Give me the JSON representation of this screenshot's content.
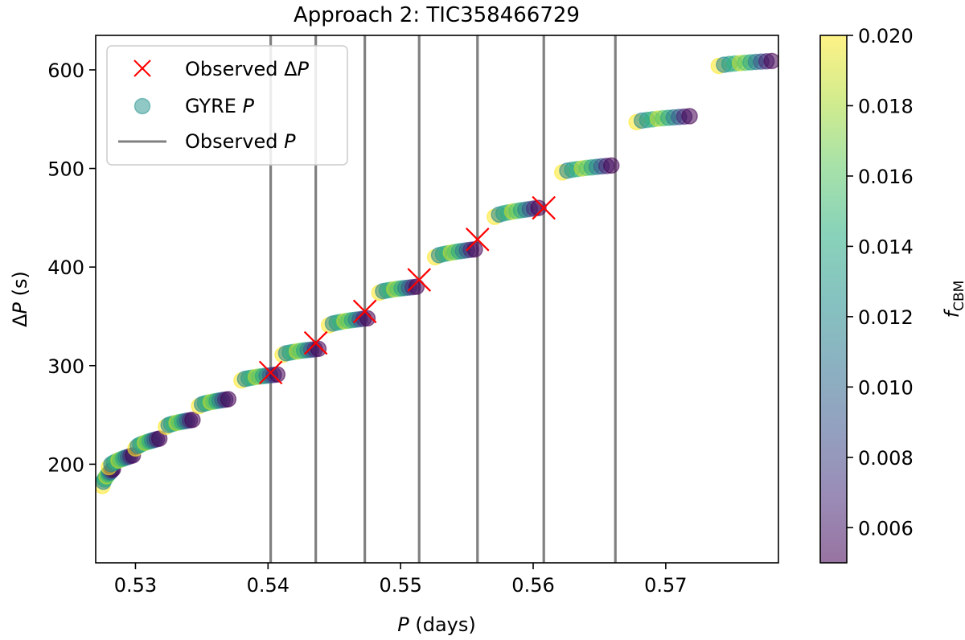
{
  "chart_data": {
    "type": "scatter",
    "title": "Approach 2: TIC358466729",
    "xlabel": {
      "main": "P",
      "units": " (days)"
    },
    "ylabel": {
      "prefix": "Δ",
      "main": "P",
      "units": " (s)"
    },
    "xlim": [
      0.527,
      0.5785
    ],
    "ylim": [
      100,
      635
    ],
    "xticks": [
      0.53,
      0.54,
      0.55,
      0.56,
      0.57
    ],
    "xtick_labels": [
      "0.53",
      "0.54",
      "0.55",
      "0.56",
      "0.57"
    ],
    "yticks": [
      200,
      300,
      400,
      500,
      600
    ],
    "ytick_labels": [
      "200",
      "300",
      "400",
      "500",
      "600"
    ],
    "colorbar": {
      "label_main": "f",
      "label_sub": "CBM",
      "range": [
        0.005,
        0.02
      ],
      "ticks": [
        0.006,
        0.008,
        0.01,
        0.012,
        0.014,
        0.016,
        0.018,
        0.02
      ],
      "tick_labels": [
        "0.006",
        "0.008",
        "0.010",
        "0.012",
        "0.014",
        "0.016",
        "0.018",
        "0.020"
      ],
      "colormap": "viridis",
      "alpha": 0.5
    },
    "legend": {
      "placement": "upper-left",
      "entries": [
        {
          "kind": "x-marker",
          "color": "#ff0000",
          "label_prefix": "Observed Δ",
          "label_italic": "P"
        },
        {
          "kind": "circle",
          "color": "#21918c",
          "label_prefix": "GYRE ",
          "label_italic": "P"
        },
        {
          "kind": "vline",
          "color": "#808080",
          "label_prefix": "Observed ",
          "label_italic": "P"
        }
      ]
    },
    "observed_periods": [
      0.5402,
      0.5436,
      0.5473,
      0.5514,
      0.5558,
      0.5608,
      0.5662
    ],
    "observed_dP": [
      {
        "x": 0.5402,
        "y": 293
      },
      {
        "x": 0.5436,
        "y": 323
      },
      {
        "x": 0.5473,
        "y": 355
      },
      {
        "x": 0.5514,
        "y": 387
      },
      {
        "x": 0.5558,
        "y": 428
      },
      {
        "x": 0.5608,
        "y": 460
      }
    ],
    "gyre_modes": [
      {
        "x0": 0.5275,
        "y0": 178,
        "x1": 0.5283,
        "y1": 195
      },
      {
        "x0": 0.528,
        "y0": 197,
        "x1": 0.5298,
        "y1": 209
      },
      {
        "x0": 0.53,
        "y0": 216,
        "x1": 0.5318,
        "y1": 226
      },
      {
        "x0": 0.5323,
        "y0": 238,
        "x1": 0.5343,
        "y1": 245
      },
      {
        "x0": 0.5348,
        "y0": 259,
        "x1": 0.537,
        "y1": 266
      },
      {
        "x0": 0.538,
        "y0": 285,
        "x1": 0.5407,
        "y1": 291
      },
      {
        "x0": 0.5411,
        "y0": 311,
        "x1": 0.5438,
        "y1": 317
      },
      {
        "x0": 0.5446,
        "y0": 341,
        "x1": 0.5475,
        "y1": 348
      },
      {
        "x0": 0.5484,
        "y0": 374,
        "x1": 0.5512,
        "y1": 380
      },
      {
        "x0": 0.5526,
        "y0": 410,
        "x1": 0.5556,
        "y1": 418
      },
      {
        "x0": 0.5571,
        "y0": 451,
        "x1": 0.5604,
        "y1": 460
      },
      {
        "x0": 0.5622,
        "y0": 496,
        "x1": 0.5659,
        "y1": 503
      },
      {
        "x0": 0.5678,
        "y0": 547,
        "x1": 0.5718,
        "y1": 553
      },
      {
        "x0": 0.574,
        "y0": 604,
        "x1": 0.578,
        "y1": 609
      }
    ]
  }
}
